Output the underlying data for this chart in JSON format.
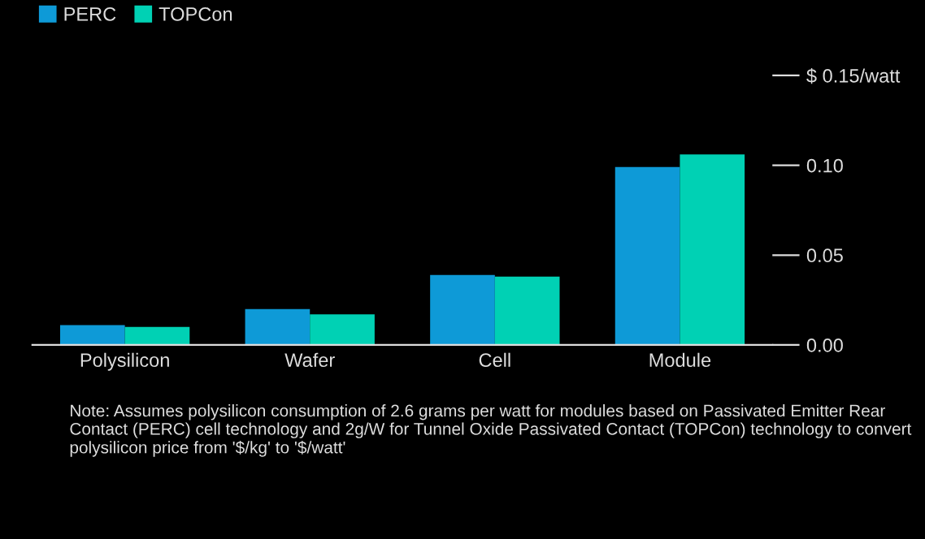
{
  "chart_data": {
    "type": "bar",
    "categories": [
      "Polysilicon",
      "Wafer",
      "Cell",
      "Module"
    ],
    "series": [
      {
        "name": "PERC",
        "color": "#0e9ad7",
        "values": [
          0.011,
          0.02,
          0.039,
          0.099
        ]
      },
      {
        "name": "TOPCon",
        "color": "#00d1b4",
        "values": [
          0.01,
          0.017,
          0.038,
          0.106
        ]
      }
    ],
    "ylim": [
      0,
      0.15
    ],
    "yticks": [
      {
        "value": 0.15,
        "label": "$ 0.15/watt"
      },
      {
        "value": 0.1,
        "label": "0.10"
      },
      {
        "value": 0.05,
        "label": "0.05"
      },
      {
        "value": 0,
        "label": "0.00"
      }
    ],
    "legend": "top left",
    "annotations": [
      "Note: Assumes polysilicon consumption of 2.6 grams per watt for modules based on Passivated Emitter Rear Contact (PERC) cell technology and 2g/W for Tunnel Oxide Passivated Contact (TOPCon) technology to convert polysilicon price from '$/kg' to '$/watt'"
    ]
  }
}
